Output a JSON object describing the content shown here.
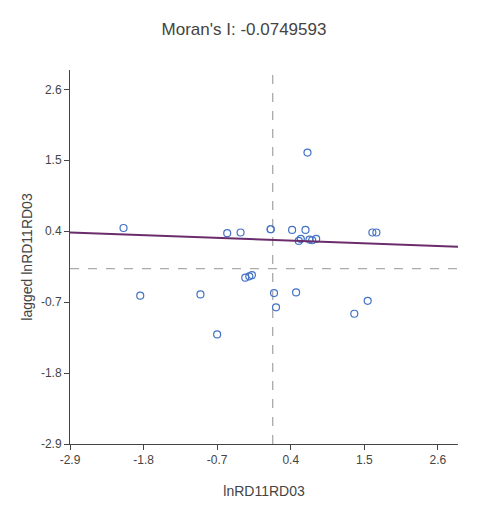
{
  "chart_data": {
    "type": "scatter",
    "title": "Moran's I: -0.0749593",
    "xlabel": "lnRD11RD03",
    "ylabel": "lagged lnRD11RD03",
    "xlim": [
      -2.9,
      2.9
    ],
    "ylim": [
      -2.9,
      2.9
    ],
    "xticks": [
      -2.9,
      -1.8,
      -0.7,
      0.4,
      1.5,
      2.6
    ],
    "yticks": [
      -2.9,
      -1.8,
      -0.7,
      0.4,
      1.5,
      2.6
    ],
    "grid": false,
    "series": [
      {
        "type": "scatter",
        "color": "#4472C4",
        "marker": "circle-open",
        "x": [
          -2.1,
          -1.85,
          -0.95,
          -0.7,
          -0.55,
          -0.35,
          -0.28,
          -0.22,
          -0.18,
          0.1,
          0.1,
          0.15,
          0.18,
          0.42,
          0.48,
          0.52,
          0.55,
          0.62,
          0.65,
          0.68,
          0.72,
          0.78,
          1.35,
          1.55,
          1.62,
          1.68
        ],
        "values": [
          0.45,
          -0.6,
          -0.58,
          -1.2,
          0.37,
          0.38,
          -0.32,
          -0.3,
          -0.28,
          0.43,
          0.43,
          -0.56,
          -0.78,
          0.42,
          -0.55,
          0.25,
          0.28,
          0.42,
          1.62,
          0.27,
          0.26,
          0.28,
          -0.88,
          -0.68,
          0.38,
          0.38
        ]
      },
      {
        "type": "line",
        "color": "#6B2C6B",
        "line_style": "solid",
        "x": [
          -2.9,
          2.9
        ],
        "values": [
          0.38,
          0.16
        ]
      }
    ],
    "reference_lines": [
      {
        "axis": "x",
        "value": 0.13,
        "color": "#AAAAAA",
        "line_style": "dash"
      },
      {
        "axis": "y",
        "value": -0.18,
        "color": "#AAAAAA",
        "line_style": "dash"
      }
    ]
  }
}
